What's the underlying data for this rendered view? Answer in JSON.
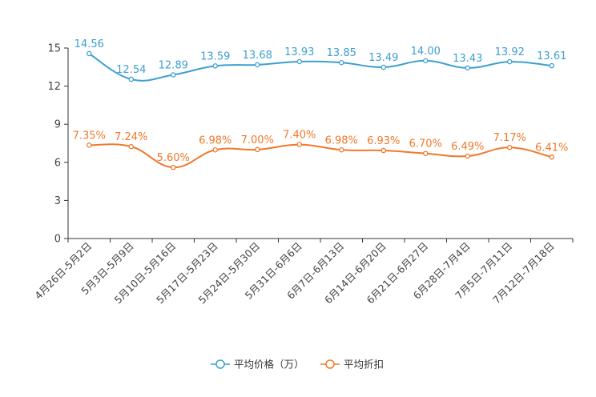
{
  "chart_data": {
    "type": "line",
    "title": "",
    "xlabel": "",
    "ylabel": "",
    "ylim": [
      0,
      15
    ],
    "yticks": [
      0,
      3,
      6,
      9,
      12,
      15
    ],
    "categories": [
      "4月26日-5月2日",
      "5月3日-5月9日",
      "5月10日-5月16日",
      "5月17日-5月23日",
      "5月24日-5月30日",
      "5月31日-6月6日",
      "6月7日-6月13日",
      "6月14日-6月20日",
      "6月21日-6月27日",
      "6月28日-7月4日",
      "7月5日-7月11日",
      "7月12日-7月18日"
    ],
    "series": [
      {
        "name": "平均价格（万）",
        "color": "#3d9fd1",
        "values": [
          14.56,
          12.54,
          12.89,
          13.59,
          13.68,
          13.93,
          13.85,
          13.49,
          14.0,
          13.43,
          13.92,
          13.61
        ],
        "labels": [
          "14.56",
          "12.54",
          "12.89",
          "13.59",
          "13.68",
          "13.93",
          "13.85",
          "13.49",
          "14.00",
          "13.43",
          "13.92",
          "13.61"
        ]
      },
      {
        "name": "平均折扣",
        "color": "#f0782a",
        "values": [
          7.35,
          7.24,
          5.6,
          6.98,
          7.0,
          7.4,
          6.98,
          6.93,
          6.7,
          6.49,
          7.17,
          6.41
        ],
        "labels": [
          "7.35%",
          "7.24%",
          "5.60%",
          "6.98%",
          "7.00%",
          "7.40%",
          "6.98%",
          "6.93%",
          "6.70%",
          "6.49%",
          "7.17%",
          "6.41%"
        ]
      }
    ],
    "legend": "bottom-center"
  }
}
